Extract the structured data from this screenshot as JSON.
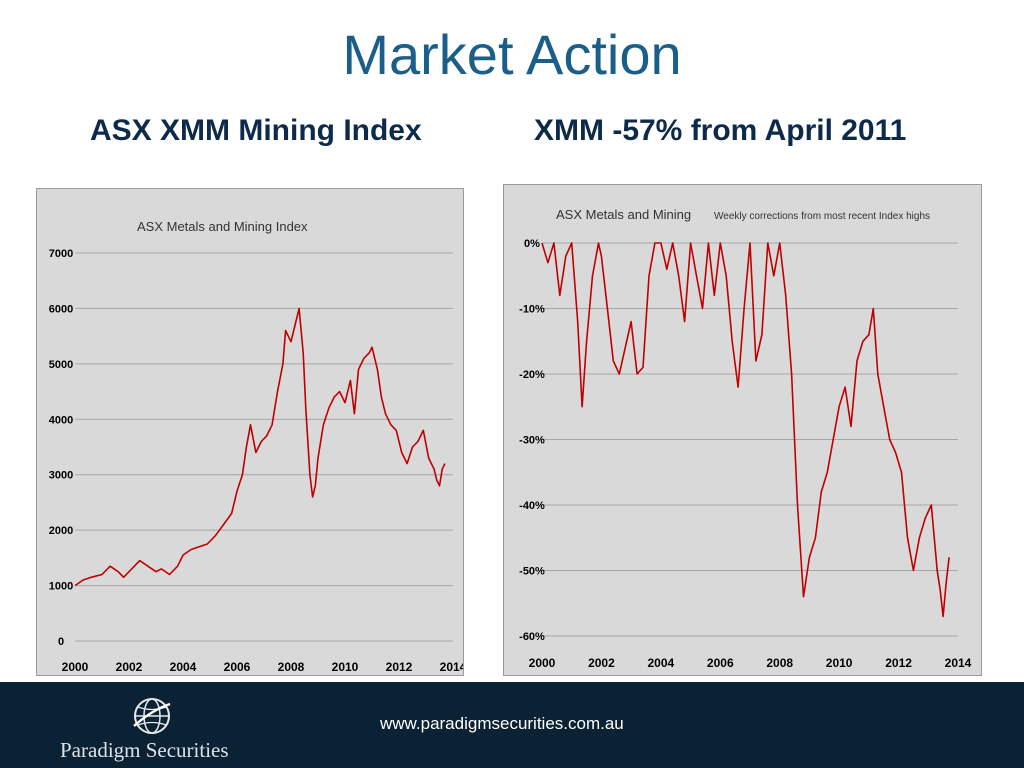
{
  "slide": {
    "title": "Market Action",
    "subtitle_left": "ASX XMM Mining Index",
    "subtitle_right": "XMM -57% from April 2011"
  },
  "footer": {
    "company": "Paradigm Securities",
    "url": "www.paradigmsecurities.com.au",
    "logo_icon": "globe-icon",
    "background_color": "#0a2233"
  },
  "chart_data": [
    {
      "type": "line",
      "title": "ASX  Metals and Mining Index",
      "xlabel": "",
      "ylabel": "",
      "xlim": [
        2000,
        2014
      ],
      "ylim": [
        0,
        7000
      ],
      "x_ticks": [
        "2000",
        "2002",
        "2004",
        "2006",
        "2008",
        "2010",
        "2012",
        "2014"
      ],
      "y_ticks": [
        "0",
        "1000",
        "2000",
        "3000",
        "4000",
        "5000",
        "6000",
        "7000"
      ],
      "grid": true,
      "line_color": "#c00000",
      "series": [
        {
          "x": [
            2000.0,
            2000.3,
            2000.6,
            2001.0,
            2001.3,
            2001.6,
            2001.8,
            2002.1,
            2002.4,
            2002.7,
            2003.0,
            2003.2,
            2003.5,
            2003.8,
            2004.0,
            2004.3,
            2004.6,
            2004.9,
            2005.2,
            2005.5,
            2005.8,
            2006.0,
            2006.2,
            2006.35,
            2006.5,
            2006.7,
            2006.9,
            2007.1,
            2007.3,
            2007.5,
            2007.7,
            2007.8,
            2008.0,
            2008.2,
            2008.3,
            2008.45,
            2008.55,
            2008.7,
            2008.8,
            2008.9,
            2009.0,
            2009.2,
            2009.4,
            2009.6,
            2009.8,
            2010.0,
            2010.2,
            2010.35,
            2010.5,
            2010.7,
            2010.9,
            2011.0,
            2011.2,
            2011.35,
            2011.5,
            2011.7,
            2011.9,
            2012.1,
            2012.3,
            2012.5,
            2012.7,
            2012.9,
            2013.1,
            2013.3,
            2013.4,
            2013.5,
            2013.6,
            2013.7
          ],
          "y": [
            1000,
            1100,
            1150,
            1200,
            1350,
            1250,
            1150,
            1300,
            1450,
            1350,
            1250,
            1300,
            1200,
            1350,
            1550,
            1650,
            1700,
            1750,
            1900,
            2100,
            2300,
            2700,
            3000,
            3500,
            3900,
            3400,
            3600,
            3700,
            3900,
            4500,
            5000,
            5600,
            5400,
            5800,
            6000,
            5200,
            4200,
            3000,
            2600,
            2800,
            3300,
            3900,
            4200,
            4400,
            4500,
            4300,
            4700,
            4100,
            4900,
            5100,
            5200,
            5300,
            4900,
            4400,
            4100,
            3900,
            3800,
            3400,
            3200,
            3500,
            3600,
            3800,
            3300,
            3100,
            2900,
            2800,
            3100,
            3200
          ]
        }
      ]
    },
    {
      "type": "line",
      "title": "ASX Metals and Mining",
      "subtitle": "Weekly corrections from most recent Index highs",
      "xlabel": "",
      "ylabel": "",
      "xlim": [
        2000,
        2014
      ],
      "ylim": [
        -60,
        0
      ],
      "x_ticks": [
        "2000",
        "2002",
        "2004",
        "2006",
        "2008",
        "2010",
        "2012",
        "2014"
      ],
      "y_ticks": [
        "0%",
        "-10%",
        "-20%",
        "-30%",
        "-40%",
        "-50%",
        "-60%"
      ],
      "grid": true,
      "line_color": "#c00000",
      "series": [
        {
          "x": [
            2000.0,
            2000.2,
            2000.4,
            2000.6,
            2000.8,
            2001.0,
            2001.2,
            2001.35,
            2001.5,
            2001.7,
            2001.9,
            2002.0,
            2002.2,
            2002.4,
            2002.6,
            2002.8,
            2003.0,
            2003.2,
            2003.4,
            2003.6,
            2003.8,
            2004.0,
            2004.2,
            2004.4,
            2004.6,
            2004.8,
            2005.0,
            2005.2,
            2005.4,
            2005.6,
            2005.8,
            2006.0,
            2006.2,
            2006.4,
            2006.6,
            2006.8,
            2007.0,
            2007.2,
            2007.4,
            2007.6,
            2007.8,
            2008.0,
            2008.2,
            2008.4,
            2008.6,
            2008.8,
            2009.0,
            2009.2,
            2009.4,
            2009.6,
            2009.8,
            2010.0,
            2010.2,
            2010.4,
            2010.6,
            2010.8,
            2011.0,
            2011.15,
            2011.3,
            2011.5,
            2011.7,
            2011.9,
            2012.1,
            2012.3,
            2012.5,
            2012.7,
            2012.9,
            2013.1,
            2013.3,
            2013.4,
            2013.5,
            2013.6,
            2013.7
          ],
          "y": [
            0,
            -3,
            0,
            -8,
            -2,
            0,
            -12,
            -25,
            -15,
            -5,
            0,
            -2,
            -10,
            -18,
            -20,
            -16,
            -12,
            -20,
            -19,
            -5,
            0,
            0,
            -4,
            0,
            -5,
            -12,
            0,
            -5,
            -10,
            0,
            -8,
            0,
            -5,
            -15,
            -22,
            -10,
            0,
            -18,
            -14,
            0,
            -5,
            0,
            -8,
            -20,
            -40,
            -54,
            -48,
            -45,
            -38,
            -35,
            -30,
            -25,
            -22,
            -28,
            -18,
            -15,
            -14,
            -10,
            -20,
            -25,
            -30,
            -32,
            -35,
            -45,
            -50,
            -45,
            -42,
            -40,
            -50,
            -53,
            -57,
            -52,
            -48
          ]
        }
      ]
    }
  ]
}
